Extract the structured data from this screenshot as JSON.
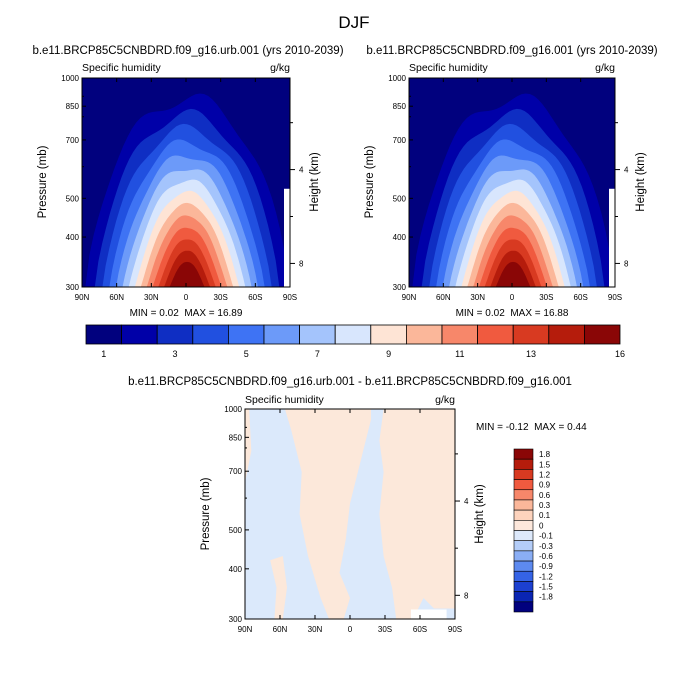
{
  "figure_title": "DJF",
  "chart_data": [
    {
      "type": "heatmap",
      "title": "b.e11.BRCP85C5CNBDRD.f09_g16.urb.001 (yrs 2010-2039)",
      "left_string": "Specific humidity",
      "right_string": "g/kg",
      "ylabel": "Pressure (mb)",
      "ylabel_right": "Height (km)",
      "x_ticks": [
        "90N",
        "60N",
        "30N",
        "0",
        "30S",
        "60S",
        "90S"
      ],
      "y_ticks": [
        "300",
        "400",
        "500",
        "700",
        "850",
        "1000"
      ],
      "y_right_ticks": [
        "8",
        "4"
      ],
      "min_label": "MIN = ",
      "min_value": "0.02",
      "max_label": "MAX = ",
      "max_value": "16.89",
      "ylim": [
        1000,
        300
      ]
    },
    {
      "type": "heatmap",
      "title": "b.e11.BRCP85C5CNBDRD.f09_g16.001 (yrs 2010-2039)",
      "left_string": "Specific humidity",
      "right_string": "g/kg",
      "ylabel": "Pressure (mb)",
      "ylabel_right": "Height (km)",
      "x_ticks": [
        "90N",
        "60N",
        "30N",
        "0",
        "30S",
        "60S",
        "90S"
      ],
      "y_ticks": [
        "300",
        "400",
        "500",
        "700",
        "850",
        "1000"
      ],
      "y_right_ticks": [
        "8",
        "4"
      ],
      "min_label": "MIN = ",
      "min_value": "0.02",
      "max_label": "MAX = ",
      "max_value": "16.88",
      "ylim": [
        1000,
        300
      ]
    },
    {
      "type": "heatmap",
      "title": "b.e11.BRCP85C5CNBDRD.f09_g16.urb.001 - b.e11.BRCP85C5CNBDRD.f09_g16.001",
      "left_string": "Specific humidity",
      "right_string": "g/kg",
      "ylabel": "Pressure (mb)",
      "ylabel_right": "Height (km)",
      "x_ticks": [
        "90N",
        "60N",
        "30N",
        "0",
        "30S",
        "60S",
        "90S"
      ],
      "y_ticks": [
        "300",
        "400",
        "500",
        "700",
        "850",
        "1000"
      ],
      "y_right_ticks": [
        "8",
        "4"
      ],
      "min_label": "MIN = ",
      "min_value": "-0.12",
      "max_label": "MAX = ",
      "max_value": "0.44",
      "ylim": [
        1000,
        300
      ]
    }
  ],
  "colorbar_top": {
    "labels": [
      "1",
      "3",
      "5",
      "7",
      "9",
      "11",
      "13",
      "16"
    ],
    "colors": [
      "#01017e",
      "#0000a8",
      "#0f2ec3",
      "#2150e0",
      "#3e73f4",
      "#6c9af9",
      "#a4c4fc",
      "#d8e6fd",
      "#fee4d5",
      "#fbb79a",
      "#f7876a",
      "#f05a3f",
      "#d83a21",
      "#b51c0c",
      "#8a0606"
    ]
  },
  "colorbar_diff": {
    "labels": [
      "1.8",
      "1.5",
      "1.2",
      "0.9",
      "0.6",
      "0.3",
      "0.1",
      "0",
      "-0.1",
      "-0.3",
      "-0.6",
      "-0.9",
      "-1.2",
      "-1.5",
      "-1.8"
    ],
    "colors": [
      "#8a0606",
      "#b51c0c",
      "#d83a21",
      "#f05a3f",
      "#f7876a",
      "#fbb79a",
      "#fdd3bd",
      "#fde8dc",
      "#dde9fb",
      "#b4cdf8",
      "#8aaef5",
      "#5d8af0",
      "#3563e6",
      "#1c40d0",
      "#0a25b3",
      "#01017e"
    ]
  },
  "diff_fill_colors": {
    "positive": "#fce8da",
    "negative": "#dbe9fb"
  }
}
